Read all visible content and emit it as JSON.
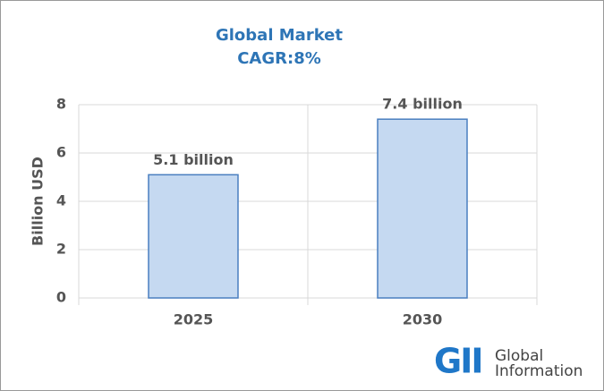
{
  "chart_data": {
    "type": "bar",
    "title": "Global Market",
    "subtitle": "CAGR:8%",
    "ylabel": "Billion USD",
    "categories": [
      "2025",
      "2030"
    ],
    "values": [
      5.1,
      7.4
    ],
    "value_labels": [
      "5.1 billion",
      "7.4 billion"
    ],
    "color": "#c5d9f1",
    "edge_color": "#4a7fc0",
    "ylim": [
      0,
      8
    ],
    "yticks": [
      0,
      2,
      4,
      6,
      8
    ],
    "grid": true,
    "logo": {
      "mark": "GII",
      "lines": [
        "Global",
        "Information"
      ]
    }
  }
}
